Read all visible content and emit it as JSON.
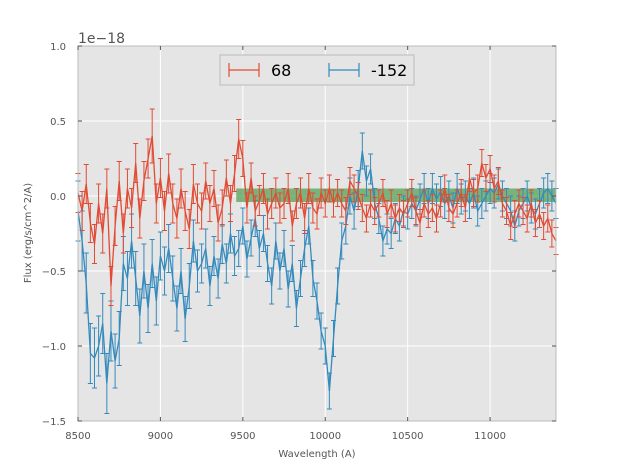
{
  "chart_data": {
    "type": "line",
    "xlabel": "Wavelength (A)",
    "ylabel": "Flux (erg/s/cm^2/A)",
    "y_offset_label": "1e−18",
    "xlim": [
      8500,
      11400
    ],
    "ylim": [
      -1.5,
      1.0
    ],
    "x_ticks": [
      8500,
      9000,
      9500,
      10000,
      10500,
      11000
    ],
    "x_tick_labels": [
      "8500",
      "9000",
      "9500",
      "10000",
      "10500",
      "11000"
    ],
    "y_ticks": [
      -1.5,
      -1.0,
      -0.5,
      0.0,
      0.5,
      1.0
    ],
    "y_tick_labels": [
      "−1.5",
      "−1.0",
      "−0.5",
      "0.0",
      "0.5",
      "1.0"
    ],
    "grid": true,
    "legend_position": "top-center",
    "colors": {
      "background": "#e5e5e5",
      "grid": "#ffffff",
      "band": "#55a055"
    },
    "band": {
      "x_start": 9460,
      "x_end": 11400,
      "y_low": -0.04,
      "y_high": 0.05
    },
    "series": [
      {
        "name": "68",
        "color": "#e24a33",
        "x": [
          8500,
          8525,
          8550,
          8575,
          8600,
          8625,
          8650,
          8675,
          8700,
          8725,
          8750,
          8775,
          8800,
          8825,
          8850,
          8875,
          8900,
          8925,
          8950,
          8975,
          9000,
          9025,
          9050,
          9075,
          9100,
          9125,
          9150,
          9175,
          9200,
          9225,
          9250,
          9275,
          9300,
          9325,
          9350,
          9375,
          9400,
          9425,
          9450,
          9475,
          9500,
          9525,
          9550,
          9575,
          9600,
          9625,
          9650,
          9675,
          9700,
          9725,
          9750,
          9775,
          9800,
          9825,
          9850,
          9875,
          9900,
          9925,
          9950,
          9975,
          10000,
          10025,
          10050,
          10075,
          10100,
          10125,
          10150,
          10175,
          10200,
          10225,
          10250,
          10275,
          10300,
          10325,
          10350,
          10375,
          10400,
          10425,
          10450,
          10475,
          10500,
          10525,
          10550,
          10575,
          10600,
          10625,
          10650,
          10675,
          10700,
          10725,
          10750,
          10775,
          10800,
          10825,
          10850,
          10875,
          10900,
          10925,
          10950,
          10975,
          11000,
          11025,
          11050,
          11075,
          11100,
          11125,
          11150,
          11175,
          11200,
          11225,
          11250,
          11275,
          11300,
          11325,
          11350,
          11375,
          11400
        ],
        "y": [
          0.02,
          -0.1,
          0.08,
          -0.18,
          -0.32,
          -0.05,
          -0.25,
          0.05,
          -0.6,
          -0.2,
          0.1,
          -0.25,
          0.05,
          -0.08,
          0.22,
          -0.15,
          0.1,
          0.25,
          0.4,
          -0.05,
          0.12,
          -0.1,
          0.15,
          -0.05,
          -0.15,
          0.05,
          -0.1,
          -0.22,
          0.08,
          -0.05,
          -0.1,
          0.1,
          -0.05,
          0.05,
          -0.18,
          -0.08,
          0.12,
          -0.05,
          0.15,
          0.38,
          0.25,
          -0.08,
          0.12,
          -0.1,
          -0.03,
          0.05,
          -0.12,
          -0.05,
          0.02,
          -0.08,
          -0.05,
          0.05,
          -0.2,
          -0.05,
          0.02,
          -0.15,
          0.05,
          -0.08,
          -0.12,
          0.02,
          -0.05,
          0.05,
          -0.05,
          0.02,
          -0.05,
          -0.1,
          0.1,
          0.05,
          0.0,
          -0.08,
          -0.15,
          -0.05,
          -0.1,
          -0.05,
          0.02,
          -0.12,
          -0.05,
          -0.15,
          -0.08,
          -0.12,
          -0.05,
          0.02,
          -0.1,
          -0.18,
          -0.05,
          -0.12,
          -0.08,
          -0.15,
          -0.05,
          0.05,
          -0.08,
          -0.12,
          -0.05,
          0.02,
          -0.08,
          0.12,
          0.02,
          0.05,
          0.22,
          0.12,
          0.18,
          0.05,
          0.1,
          -0.05,
          -0.1,
          -0.2,
          -0.12,
          -0.05,
          -0.1,
          -0.15,
          -0.05,
          -0.18,
          -0.12,
          -0.2,
          -0.15,
          -0.25,
          -0.3
        ],
        "err": [
          0.13,
          0.13,
          0.13,
          0.13,
          0.13,
          0.13,
          0.13,
          0.13,
          0.13,
          0.13,
          0.13,
          0.13,
          0.13,
          0.13,
          0.13,
          0.13,
          0.13,
          0.13,
          0.18,
          0.13,
          0.13,
          0.13,
          0.13,
          0.13,
          0.13,
          0.13,
          0.13,
          0.13,
          0.13,
          0.13,
          0.12,
          0.12,
          0.12,
          0.12,
          0.12,
          0.12,
          0.12,
          0.12,
          0.12,
          0.13,
          0.12,
          0.1,
          0.1,
          0.1,
          0.1,
          0.1,
          0.1,
          0.1,
          0.1,
          0.1,
          0.1,
          0.1,
          0.1,
          0.1,
          0.1,
          0.1,
          0.1,
          0.1,
          0.1,
          0.1,
          0.09,
          0.09,
          0.09,
          0.09,
          0.09,
          0.09,
          0.09,
          0.09,
          0.09,
          0.09,
          0.09,
          0.09,
          0.09,
          0.09,
          0.09,
          0.09,
          0.09,
          0.09,
          0.09,
          0.09,
          0.09,
          0.09,
          0.09,
          0.09,
          0.09,
          0.09,
          0.09,
          0.09,
          0.09,
          0.09,
          0.09,
          0.09,
          0.09,
          0.09,
          0.09,
          0.09,
          0.09,
          0.09,
          0.09,
          0.09,
          0.09,
          0.09,
          0.09,
          0.09,
          0.09,
          0.09,
          0.09,
          0.09,
          0.09,
          0.09,
          0.09,
          0.09,
          0.09,
          0.09,
          0.09,
          0.09,
          0.09
        ]
      },
      {
        "name": "-152",
        "color": "#348abd",
        "x": [
          8500,
          8525,
          8550,
          8575,
          8600,
          8625,
          8650,
          8675,
          8700,
          8725,
          8750,
          8775,
          8800,
          8825,
          8850,
          8875,
          8900,
          8925,
          8950,
          8975,
          9000,
          9025,
          9050,
          9075,
          9100,
          9125,
          9150,
          9175,
          9200,
          9225,
          9250,
          9275,
          9300,
          9325,
          9350,
          9375,
          9400,
          9425,
          9450,
          9475,
          9500,
          9525,
          9550,
          9575,
          9600,
          9625,
          9650,
          9675,
          9700,
          9725,
          9750,
          9775,
          9800,
          9825,
          9850,
          9875,
          9900,
          9925,
          9950,
          9975,
          10000,
          10025,
          10050,
          10075,
          10100,
          10125,
          10150,
          10175,
          10200,
          10225,
          10250,
          10275,
          10300,
          10325,
          10350,
          10375,
          10400,
          10425,
          10450,
          10475,
          10500,
          10525,
          10550,
          10575,
          10600,
          10625,
          10650,
          10675,
          10700,
          10725,
          10750,
          10775,
          10800,
          10825,
          10850,
          10875,
          10900,
          10925,
          10950,
          10975,
          11000,
          11025,
          11050,
          11075,
          11100,
          11125,
          11150,
          11175,
          11200,
          11225,
          11250,
          11275,
          11300,
          11325,
          11350,
          11375,
          11400
        ],
        "y": [
          -0.1,
          -0.3,
          -0.58,
          -1.05,
          -1.08,
          -1.0,
          -0.85,
          -1.25,
          -0.9,
          -1.1,
          -0.95,
          -0.45,
          -0.55,
          -0.3,
          -0.55,
          -0.8,
          -0.5,
          -0.75,
          -0.45,
          -0.7,
          -0.4,
          -0.5,
          -0.35,
          -0.55,
          -0.75,
          -0.5,
          -0.82,
          -0.6,
          -0.3,
          -0.5,
          -0.45,
          -0.35,
          -0.6,
          -0.4,
          -0.55,
          -0.32,
          -0.45,
          -0.25,
          -0.4,
          -0.35,
          -0.2,
          -0.42,
          -0.28,
          -0.15,
          -0.35,
          -0.25,
          -0.45,
          -0.6,
          -0.3,
          -0.5,
          -0.35,
          -0.62,
          -0.45,
          -0.75,
          -0.55,
          -0.35,
          -0.2,
          -0.55,
          -0.7,
          -0.9,
          -1.0,
          -1.3,
          -0.95,
          -0.6,
          -0.3,
          -0.2,
          0.0,
          -0.1,
          0.05,
          0.3,
          0.1,
          0.18,
          -0.05,
          -0.15,
          -0.3,
          -0.22,
          -0.25,
          -0.15,
          -0.2,
          -0.1,
          -0.12,
          -0.05,
          -0.1,
          -0.02,
          0.05,
          -0.05,
          0.05,
          -0.02,
          0.03,
          -0.05,
          0.0,
          -0.08,
          0.05,
          -0.02,
          0.0,
          -0.05,
          0.02,
          -0.1,
          -0.05,
          0.0,
          0.05,
          0.02,
          0.08,
          0.0,
          -0.05,
          -0.1,
          -0.2,
          -0.1,
          -0.05,
          0.0,
          -0.08,
          -0.12,
          -0.05,
          0.02,
          0.05,
          0.0,
          -0.05
        ],
        "err": [
          0.2,
          0.2,
          0.2,
          0.2,
          0.2,
          0.2,
          0.2,
          0.2,
          0.2,
          0.18,
          0.18,
          0.18,
          0.18,
          0.18,
          0.18,
          0.18,
          0.18,
          0.16,
          0.16,
          0.16,
          0.16,
          0.16,
          0.16,
          0.15,
          0.15,
          0.15,
          0.15,
          0.15,
          0.14,
          0.14,
          0.13,
          0.13,
          0.13,
          0.13,
          0.13,
          0.13,
          0.13,
          0.13,
          0.13,
          0.12,
          0.12,
          0.12,
          0.12,
          0.12,
          0.12,
          0.12,
          0.12,
          0.12,
          0.12,
          0.12,
          0.12,
          0.12,
          0.12,
          0.12,
          0.12,
          0.12,
          0.12,
          0.12,
          0.12,
          0.12,
          0.12,
          0.12,
          0.12,
          0.12,
          0.12,
          0.12,
          0.12,
          0.12,
          0.12,
          0.12,
          0.1,
          0.1,
          0.1,
          0.1,
          0.1,
          0.1,
          0.1,
          0.1,
          0.1,
          0.1,
          0.1,
          0.1,
          0.1,
          0.1,
          0.1,
          0.1,
          0.1,
          0.1,
          0.1,
          0.1,
          0.1,
          0.1,
          0.1,
          0.1,
          0.1,
          0.1,
          0.1,
          0.1,
          0.1,
          0.1,
          0.1,
          0.1,
          0.1,
          0.1,
          0.1,
          0.1,
          0.1,
          0.1,
          0.1,
          0.1,
          0.1,
          0.1,
          0.1,
          0.1,
          0.1,
          0.1,
          0.1
        ]
      }
    ]
  }
}
